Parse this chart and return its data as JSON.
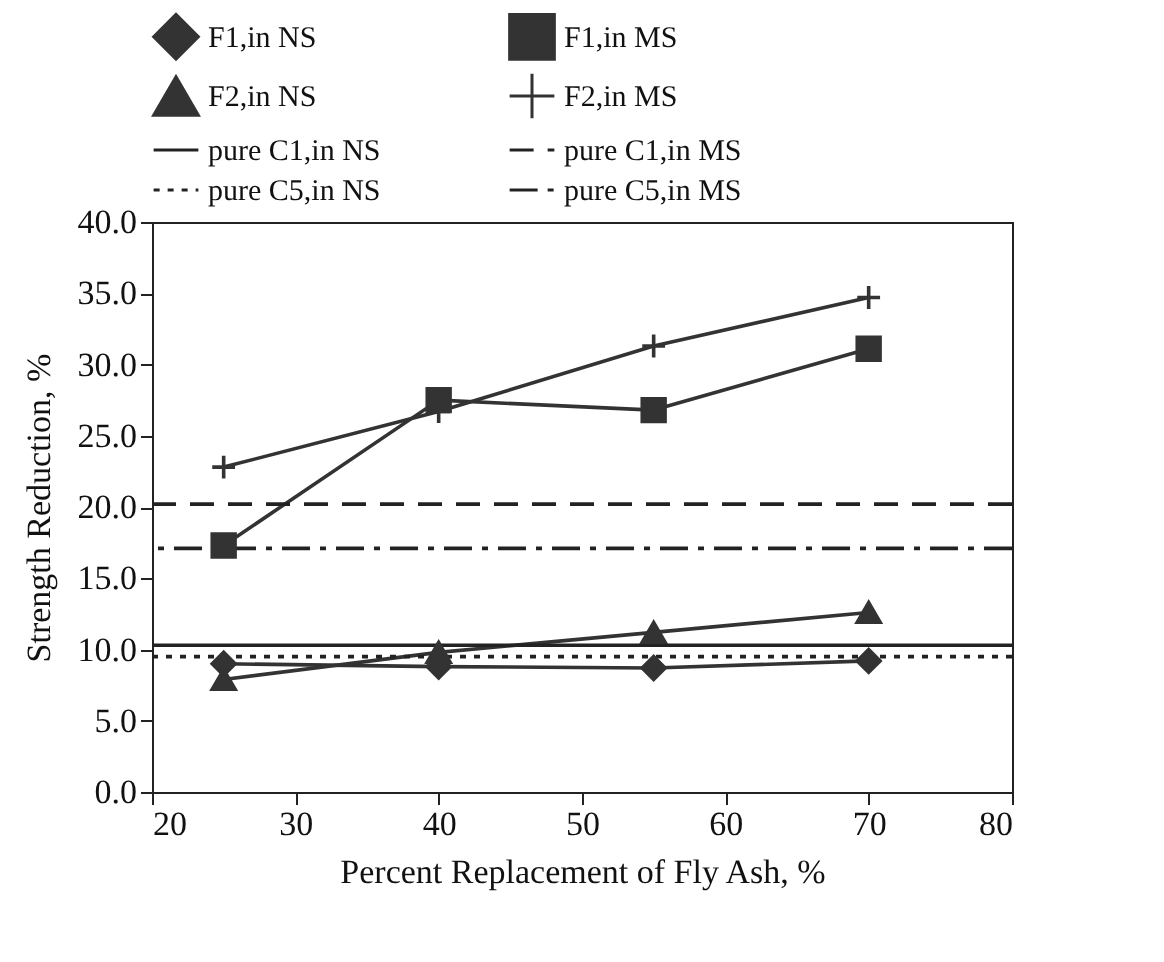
{
  "chart_data": {
    "type": "line",
    "xlabel": "Percent Replacement of Fly Ash, %",
    "ylabel": "Strength Reduction, %",
    "xlim": [
      20,
      80
    ],
    "xticks": [
      20,
      30,
      40,
      50,
      60,
      70,
      80
    ],
    "ylim": [
      0,
      40
    ],
    "yticks": [
      {
        "value": 0,
        "label": "0.0"
      },
      {
        "value": 5,
        "label": "5.0"
      },
      {
        "value": 10,
        "label": "10.0"
      },
      {
        "value": 15,
        "label": "15.0"
      },
      {
        "value": 20,
        "label": "20.0"
      },
      {
        "value": 25,
        "label": "25.0"
      },
      {
        "value": 30,
        "label": "30.0"
      },
      {
        "value": 35,
        "label": "35.0"
      },
      {
        "value": 40,
        "label": "40.0"
      }
    ],
    "grid": false,
    "legend": "top",
    "x": [
      25,
      40,
      55,
      70
    ],
    "series": [
      {
        "name": "F1,in NS",
        "color": "#333333",
        "marker": "diamond",
        "line_style": "solid",
        "values": [
          9.0,
          8.8,
          8.7,
          9.2
        ]
      },
      {
        "name": "F1,in MS",
        "color": "#333333",
        "marker": "square",
        "line_style": "solid",
        "values": [
          17.3,
          27.5,
          26.8,
          31.1
        ]
      },
      {
        "name": "F2,in NS",
        "color": "#333333",
        "marker": "triangle",
        "line_style": "solid",
        "values": [
          7.9,
          9.8,
          11.2,
          12.6
        ]
      },
      {
        "name": "F2,in MS",
        "color": "#333333",
        "marker": "cross",
        "line_style": "solid",
        "values": [
          22.8,
          26.7,
          31.3,
          34.7
        ]
      }
    ],
    "ref_lines": [
      {
        "axis": "y",
        "value": 10.3,
        "label": "pure C1,in NS",
        "color": "#222222",
        "line_style": "solid"
      },
      {
        "axis": "y",
        "value": 20.2,
        "label": "pure C1,in MS",
        "color": "#222222",
        "line_style": "dashed"
      },
      {
        "axis": "y",
        "value": 9.5,
        "label": "pure C5,in NS",
        "color": "#222222",
        "line_style": "dotted"
      },
      {
        "axis": "y",
        "value": 17.1,
        "label": "pure C5,in MS",
        "color": "#222222",
        "line_style": "dashdot"
      }
    ]
  }
}
